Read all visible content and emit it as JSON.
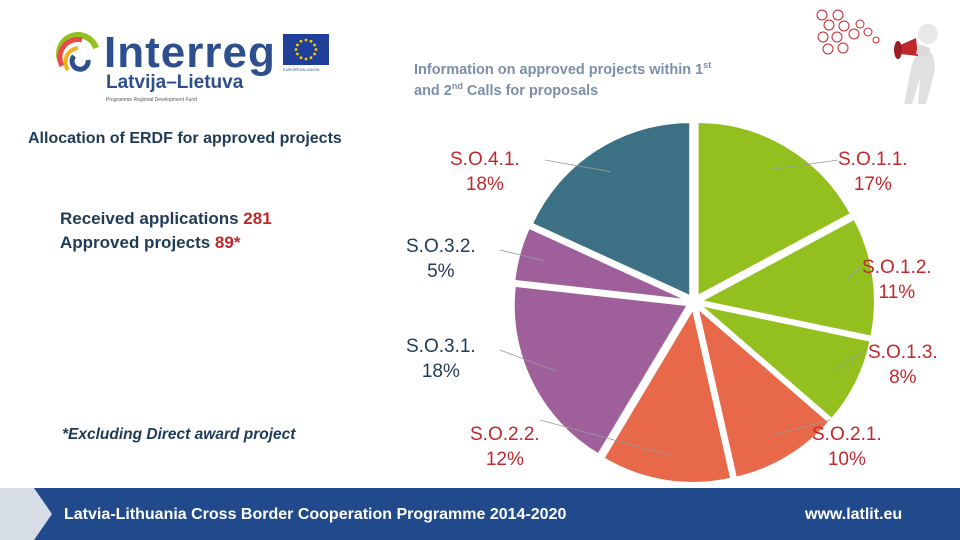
{
  "logo": {
    "word": "Interreg",
    "sub": "Latvija–Lietuva",
    "tagline": "Programme Regional Development Fund",
    "eu_text": "EUROPEAN UNION"
  },
  "header": {
    "title_line1_pre": "Information on approved projects within 1",
    "title_line1_sup": "st",
    "title_line2_pre": "and 2",
    "title_line2_sup": "nd",
    "title_line2_post": " Calls for proposals"
  },
  "left": {
    "allocation_title": "Allocation of ERDF for approved projects",
    "received_label": "Received applications ",
    "received_value": "281",
    "approved_label": "Approved projects ",
    "approved_value": "89*",
    "footnote": "*Excluding Direct award project"
  },
  "chart_data": {
    "type": "pie",
    "title": "Allocation of ERDF for approved projects",
    "slices": [
      {
        "name": "S.O.1.1.",
        "pct_label": "17%",
        "value": 17,
        "color": "#93c01f",
        "label_color": "#c0282d"
      },
      {
        "name": "S.O.1.2.",
        "pct_label": "11%",
        "value": 11,
        "color": "#93c01f",
        "label_color": "#c0282d"
      },
      {
        "name": "S.O.1.3.",
        "pct_label": "8%",
        "value": 8,
        "color": "#93c01f",
        "label_color": "#c0282d"
      },
      {
        "name": "S.O.2.1.",
        "pct_label": "10%",
        "value": 10,
        "color": "#e8694a",
        "label_color": "#c0282d"
      },
      {
        "name": "S.O.2.2.",
        "pct_label": "12%",
        "value": 12,
        "color": "#e8694a",
        "label_color": "#c0282d"
      },
      {
        "name": "S.O.3.1.",
        "pct_label": "18%",
        "value": 18,
        "color": "#9e5f9a",
        "label_color": "#1f3b57"
      },
      {
        "name": "S.O.3.2.",
        "pct_label": "5%",
        "value": 5,
        "color": "#9e5f9a",
        "label_color": "#1f3b57"
      },
      {
        "name": "S.O.4.1.",
        "pct_label": "18%",
        "value": 18,
        "color": "#3c7185",
        "label_color": "#c0282d"
      }
    ]
  },
  "footer": {
    "text": "Latvia-Lithuania Cross Border Cooperation Programme 2014-2020",
    "url": "www.latlit.eu"
  },
  "colors": {
    "brand_blue": "#214a8c",
    "accent_red": "#c0282d",
    "text_dark": "#1f3b57",
    "header_grey": "#7b8fa8"
  }
}
